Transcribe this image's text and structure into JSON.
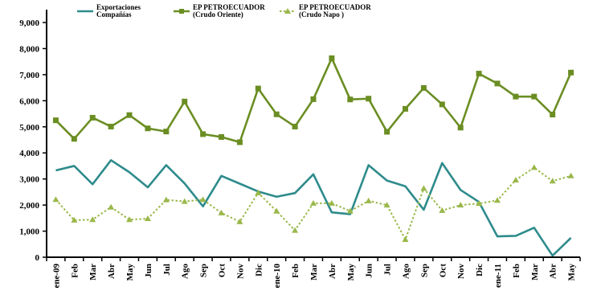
{
  "chart_data": {
    "type": "line",
    "categories": [
      "ene-09",
      "Feb",
      "Mar",
      "Abr",
      "May",
      "Jun",
      "Jul",
      "Ago",
      "Sep",
      "Oct",
      "Nov",
      "Dic",
      "ene-10",
      "Feb",
      "Mar",
      "Abr",
      "May",
      "Jun",
      "Jul",
      "Ago",
      "Sep",
      "Oct",
      "Nov",
      "Dic",
      "ene-11",
      "Feb",
      "Mar",
      "Abr",
      "May"
    ],
    "ylim": [
      0,
      9000
    ],
    "yticks": [
      "0",
      "1,000",
      "2,000",
      "3,000",
      "4,000",
      "5,000",
      "6,000",
      "7,000",
      "8,000",
      "9,000"
    ],
    "grid": false,
    "legend_position": "top",
    "series": [
      {
        "name": "Exportaciones Compañías",
        "legend_lines": [
          "Exportaciones",
          "Compañías"
        ],
        "color": "#2e8b8c",
        "style": "solid",
        "marker": "none",
        "values": [
          3330,
          3500,
          2800,
          3720,
          3260,
          2680,
          3530,
          2830,
          1950,
          3120,
          2820,
          2520,
          2320,
          2460,
          3180,
          1720,
          1650,
          3530,
          2940,
          2720,
          1820,
          3610,
          2580,
          2120,
          800,
          820,
          1130,
          60,
          740
        ]
      },
      {
        "name": "EP PETROECUADOR (Crudo Oriente)",
        "legend_lines": [
          "EP PETROECUADOR",
          "(Crudo Oriente)"
        ],
        "color": "#6b8e23",
        "style": "solid",
        "marker": "square",
        "values": [
          5250,
          4540,
          5350,
          5010,
          5450,
          4940,
          4820,
          5970,
          4720,
          4610,
          4410,
          6470,
          5480,
          5010,
          6060,
          7630,
          6050,
          6080,
          4810,
          5690,
          6490,
          5860,
          4970,
          7040,
          6660,
          6160,
          6160,
          5470,
          7080
        ]
      },
      {
        "name": "EP PETROECUADOR (Crudo Napo)",
        "legend_lines": [
          "EP PETROECUADOR",
          "(Crudo Napo )"
        ],
        "color": "#9ab84a",
        "style": "dotted",
        "marker": "triangle",
        "values": [
          2210,
          1420,
          1440,
          1920,
          1440,
          1480,
          2200,
          2140,
          2210,
          1700,
          1360,
          2470,
          1770,
          1030,
          2070,
          2070,
          1770,
          2160,
          2000,
          680,
          2640,
          1790,
          2000,
          2060,
          2180,
          2960,
          3440,
          2920,
          3120
        ]
      }
    ]
  }
}
